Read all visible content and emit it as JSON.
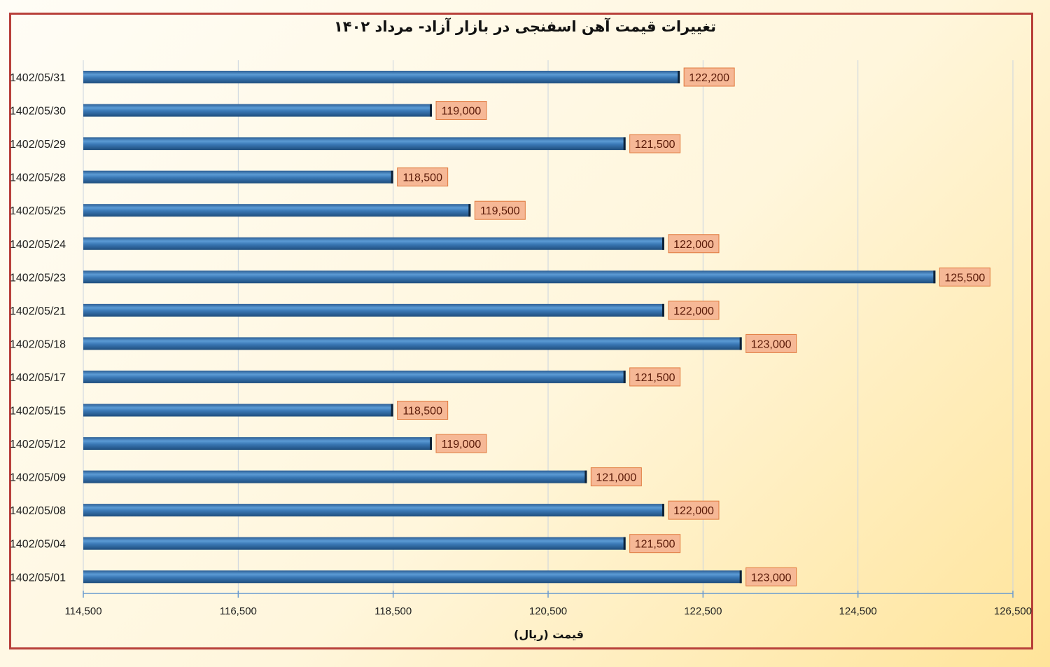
{
  "chart_data": {
    "type": "bar",
    "orientation": "horizontal",
    "title": "تغییرات قیمت آهن اسفنجی در بازار آزاد- مرداد ۱۴۰۲",
    "xlabel": "قیمت (ریال)",
    "ylabel": "",
    "xlim": [
      114500,
      126500
    ],
    "xticks": [
      "114,500",
      "116,500",
      "118,500",
      "120,500",
      "122,500",
      "124,500",
      "126,500"
    ],
    "grid": true,
    "legend": "none",
    "bar_color": "#3a78b5",
    "label_fill": "#f6b896",
    "label_border": "#e07a3e",
    "frame_color": "#b8403a",
    "categories": [
      "1402/05/31",
      "1402/05/30",
      "1402/05/29",
      "1402/05/28",
      "1402/05/25",
      "1402/05/24",
      "1402/05/23",
      "1402/05/21",
      "1402/05/18",
      "1402/05/17",
      "1402/05/15",
      "1402/05/12",
      "1402/05/09",
      "1402/05/08",
      "1402/05/04",
      "1402/05/01"
    ],
    "values": [
      122200,
      119000,
      121500,
      118500,
      119500,
      122000,
      125500,
      122000,
      123000,
      121500,
      118500,
      119000,
      121000,
      122000,
      121500,
      123000
    ],
    "data_labels": [
      "122,200",
      "119,000",
      "121,500",
      "118,500",
      "119,500",
      "122,000",
      "125,500",
      "122,000",
      "123,000",
      "121,500",
      "118,500",
      "119,000",
      "121,000",
      "122,000",
      "121,500",
      "123,000"
    ]
  }
}
